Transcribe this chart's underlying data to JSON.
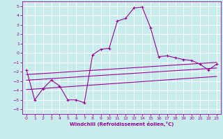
{
  "xlabel": "Windchill (Refroidissement éolien,°C)",
  "background_color": "#c8ecec",
  "line_color": "#990099",
  "grid_color": "#ffffff",
  "xlim": [
    -0.5,
    23.5
  ],
  "ylim": [
    -6.5,
    5.5
  ],
  "yticks": [
    -6,
    -5,
    -4,
    -3,
    -2,
    -1,
    0,
    1,
    2,
    3,
    4,
    5
  ],
  "xticks": [
    0,
    1,
    2,
    3,
    4,
    5,
    6,
    7,
    8,
    9,
    10,
    11,
    12,
    13,
    14,
    15,
    16,
    17,
    18,
    19,
    20,
    21,
    22,
    23
  ],
  "main_x": [
    0,
    1,
    2,
    3,
    4,
    5,
    6,
    7,
    8,
    9,
    10,
    11,
    12,
    13,
    14,
    15,
    16,
    17,
    18,
    19,
    20,
    21,
    22,
    23
  ],
  "main_y": [
    -1.8,
    -5.0,
    -3.8,
    -2.9,
    -3.5,
    -5.0,
    -5.0,
    -5.3,
    -0.2,
    0.4,
    0.5,
    3.4,
    3.7,
    4.8,
    4.9,
    2.7,
    -0.4,
    -0.3,
    -0.5,
    -0.7,
    -0.8,
    -1.2,
    -1.8,
    -1.2
  ],
  "line1_x": [
    0,
    23
  ],
  "line1_y": [
    -2.3,
    -1.0
  ],
  "line2_x": [
    0,
    23
  ],
  "line2_y": [
    -2.9,
    -1.6
  ],
  "line3_x": [
    0,
    23
  ],
  "line3_y": [
    -3.9,
    -2.5
  ]
}
